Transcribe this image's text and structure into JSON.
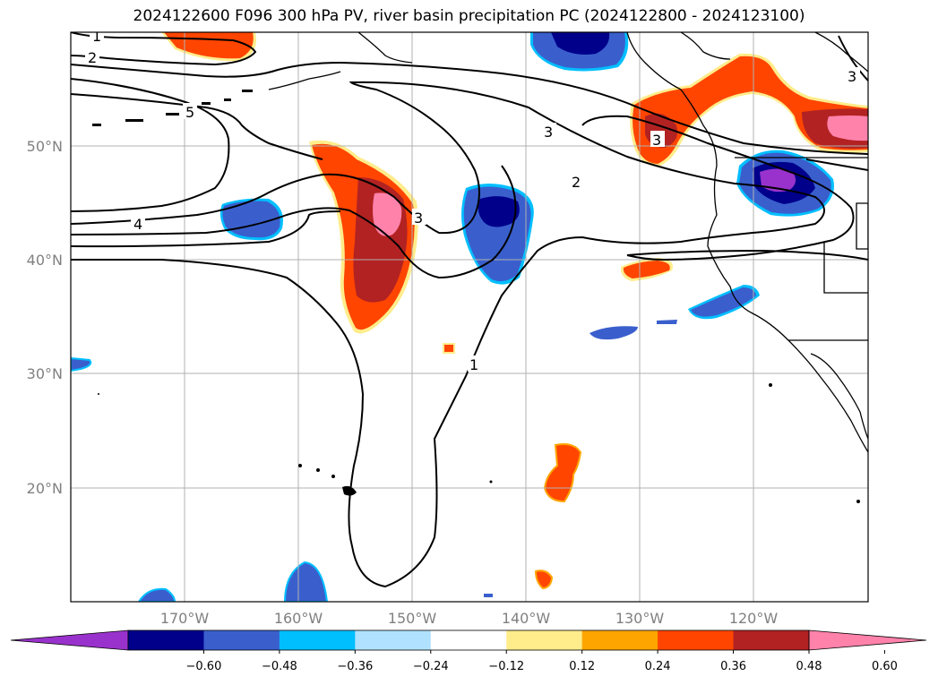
{
  "title": "2024122600 F096 300 hPa PV, river basin precipitation PC (2024122800 - 2024123100)",
  "lon_ticks": [
    "170°W",
    "160°W",
    "150°W",
    "140°W",
    "130°W",
    "120°W"
  ],
  "lat_ticks": [
    "50°N",
    "40°N",
    "30°N",
    "20°N"
  ],
  "contour_labels": [
    "1",
    "2",
    "5",
    "4",
    "3",
    "3",
    "2",
    "3",
    "3",
    "1"
  ],
  "colorbar": {
    "ticks": [
      "−0.60",
      "−0.48",
      "−0.36",
      "−0.24",
      "−0.12",
      "0.12",
      "0.24",
      "0.36",
      "0.48",
      "0.60"
    ],
    "colors": [
      "#9932CC",
      "#00008B",
      "#3A5FCD",
      "#00BFFF",
      "#B0E2FF",
      "#FFFFFF",
      "#FFEC8B",
      "#FFA500",
      "#FF4500",
      "#B22222",
      "#FF82AB"
    ]
  }
}
